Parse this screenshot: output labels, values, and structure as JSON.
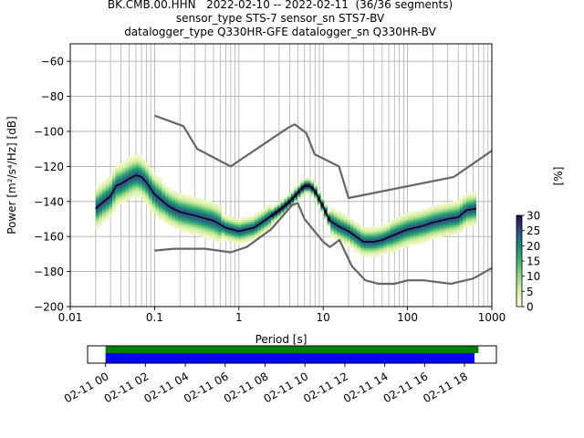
{
  "title_lines": [
    "BK.CMB.00.HHN   2022-02-10 -- 2022-02-11  (36/36 segments)",
    "sensor_type STS-7 sensor_sn STS7-BV",
    "datalogger_type Q330HR-GFE datalogger_sn Q330HR-BV"
  ],
  "chart_data": [
    {
      "type": "heatmap",
      "subtype": "probabilistic-power-spectral-density",
      "xlabel": "Period [s]",
      "ylabel": "Power [m²/s⁴/Hz] [dB]",
      "xscale": "log",
      "xlim": [
        0.01,
        1000
      ],
      "ylim": [
        -200,
        -50
      ],
      "xticks": [
        0.01,
        0.1,
        1,
        10,
        100,
        1000
      ],
      "xtick_labels": [
        "0.01",
        "0.1",
        "1",
        "10",
        "100",
        "1000"
      ],
      "yticks": [
        -60,
        -80,
        -100,
        -120,
        -140,
        -160,
        -180,
        -200
      ],
      "ytick_labels": [
        "−60",
        "−80",
        "−100",
        "−120",
        "−140",
        "−160",
        "−180",
        "−200"
      ],
      "grid": true,
      "mean_curve": {
        "x": [
          0.02,
          0.025,
          0.03,
          0.035,
          0.04,
          0.05,
          0.06,
          0.07,
          0.08,
          0.1,
          0.15,
          0.2,
          0.3,
          0.5,
          0.7,
          1,
          1.5,
          2,
          3,
          4,
          5,
          6,
          7,
          8,
          10,
          12,
          15,
          20,
          30,
          40,
          50,
          70,
          100,
          150,
          200,
          300,
          400,
          500,
          650
        ],
        "y": [
          -144,
          -140,
          -137,
          -131,
          -130,
          -127,
          -125,
          -126,
          -129,
          -136,
          -143,
          -146,
          -148,
          -151,
          -155,
          -157,
          -155,
          -151,
          -145,
          -140,
          -135,
          -131,
          -131,
          -134,
          -143,
          -151,
          -154,
          -157,
          -163,
          -163,
          -162,
          -159,
          -156,
          -154,
          -152,
          -150,
          -149,
          -145,
          -144
        ]
      },
      "noise_models": [
        {
          "name": "high-noise-model",
          "x": [
            0.1,
            0.22,
            0.32,
            0.8,
            3.8,
            4.6,
            6.3,
            7.9,
            15.4,
            20,
            354.8,
            1000
          ],
          "y": [
            -91,
            -97,
            -110,
            -120,
            -98,
            -96,
            -101,
            -113,
            -120,
            -138,
            -126,
            -111
          ]
        },
        {
          "name": "low-noise-model",
          "x": [
            0.1,
            0.17,
            0.4,
            0.8,
            1.24,
            2.4,
            4.3,
            5,
            6,
            10,
            12,
            15.6,
            21.9,
            31.6,
            45,
            70,
            101,
            154,
            328,
            600,
            1000
          ],
          "y": [
            -168,
            -167,
            -167,
            -169,
            -166,
            -156,
            -142,
            -141,
            -150,
            -163,
            -166,
            -162,
            -177,
            -185,
            -187,
            -187,
            -185,
            -185,
            -187,
            -184,
            -178
          ]
        }
      ],
      "colorbar": {
        "label": "[%]",
        "min": 0,
        "max": 30,
        "ticks": [
          0,
          5,
          10,
          15,
          20,
          25,
          30
        ],
        "tick_labels": [
          "0",
          "5",
          "10",
          "15",
          "20",
          "25",
          "30"
        ]
      }
    },
    {
      "type": "timeline",
      "tick_labels": [
        "02-11 00",
        "02-11 02",
        "02-11 04",
        "02-11 06",
        "02-11 08",
        "02-11 10",
        "02-11 12",
        "02-11 14",
        "02-11 16",
        "02-11 18"
      ],
      "ticks_hours": [
        0,
        2,
        4,
        6,
        8,
        10,
        12,
        14,
        16,
        18
      ],
      "xlim_hours": [
        -0.9,
        19.6
      ],
      "bars": [
        {
          "name": "data-coverage",
          "color": "#008000",
          "start_hours": 0,
          "end_hours": 18.7
        },
        {
          "name": "psd-segments",
          "color": "#0000ff",
          "start_hours": 0,
          "end_hours": 18.5
        }
      ]
    }
  ]
}
